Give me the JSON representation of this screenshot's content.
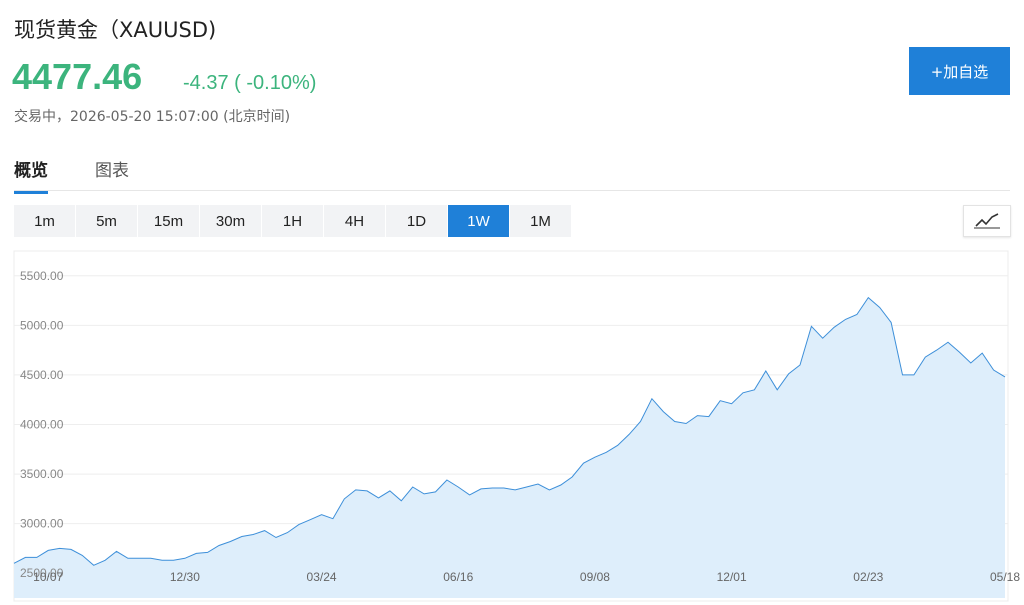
{
  "header": {
    "title": "现货黄金（XAUUSD)",
    "price": "4477.46",
    "change": "-4.37 ( -0.10%)",
    "status": "交易中，2026-05-20 15:07:00 (北京时间)",
    "watch_button": "+加自选"
  },
  "tabs": [
    "概览",
    "图表"
  ],
  "active_tab": 0,
  "periods": [
    "1m",
    "5m",
    "15m",
    "30m",
    "1H",
    "4H",
    "1D",
    "1W",
    "1M"
  ],
  "active_period": 7,
  "chart_data": {
    "type": "area",
    "color": "#3d8fd9",
    "fill": "#deeefb",
    "grid": true,
    "categories": [
      null,
      null,
      null,
      "10/07",
      null,
      null,
      null,
      null,
      null,
      null,
      null,
      null,
      null,
      null,
      null,
      "12/30",
      null,
      null,
      null,
      null,
      null,
      null,
      null,
      null,
      null,
      null,
      null,
      "03/24",
      null,
      null,
      null,
      null,
      null,
      null,
      null,
      null,
      null,
      null,
      null,
      "06/16",
      null,
      null,
      null,
      null,
      null,
      null,
      null,
      null,
      null,
      null,
      null,
      "09/08",
      null,
      null,
      null,
      null,
      null,
      null,
      null,
      null,
      null,
      null,
      null,
      "12/01",
      null,
      null,
      null,
      null,
      null,
      null,
      null,
      null,
      null,
      null,
      null,
      "02/23",
      null,
      null,
      null,
      null,
      null,
      null,
      null,
      null,
      null,
      null,
      null,
      "05/18"
    ],
    "values": [
      2600,
      2660,
      2660,
      2730,
      2750,
      2740,
      2680,
      2580,
      2630,
      2720,
      2650,
      2650,
      2650,
      2630,
      2630,
      2650,
      2700,
      2710,
      2780,
      2820,
      2870,
      2890,
      2930,
      2860,
      2910,
      2990,
      3040,
      3090,
      3050,
      3250,
      3340,
      3330,
      3260,
      3330,
      3230,
      3370,
      3300,
      3320,
      3440,
      3370,
      3290,
      3350,
      3360,
      3360,
      3340,
      3370,
      3400,
      3340,
      3390,
      3470,
      3610,
      3670,
      3720,
      3790,
      3900,
      4030,
      4260,
      4130,
      4030,
      4010,
      4090,
      4080,
      4240,
      4210,
      4320,
      4350,
      4540,
      4350,
      4510,
      4600,
      4990,
      4870,
      4980,
      5060,
      5110,
      5280,
      5180,
      5030,
      4500,
      4500,
      4680,
      4750,
      4830,
      4730,
      4620,
      4720,
      4550,
      4480
    ],
    "ylim": [
      2250,
      5750
    ],
    "yticks": [
      {
        "value": 2500,
        "label": "2500.00"
      },
      {
        "value": 3000,
        "label": "3000.00"
      },
      {
        "value": 3500,
        "label": "3500.00"
      },
      {
        "value": 4000,
        "label": "4000.00"
      },
      {
        "value": 4500,
        "label": "4500.00"
      },
      {
        "value": 5000,
        "label": "5000.00"
      },
      {
        "value": 5500,
        "label": "5500.00"
      }
    ]
  }
}
